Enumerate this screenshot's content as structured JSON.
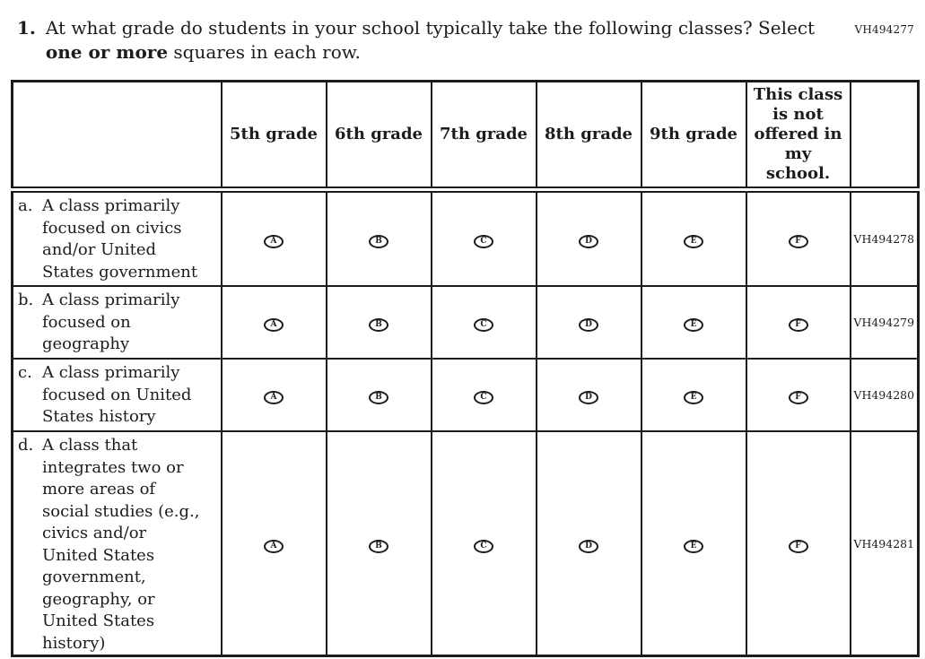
{
  "form_code": "VH494277",
  "question": {
    "number": "1.",
    "line1": "At what grade do students in your school typically take the following classes? Select",
    "line2_bold": "one or more",
    "line2_rest": " squares in each row."
  },
  "table": {
    "columns": [
      "5th grade",
      "6th grade",
      "7th grade",
      "8th grade",
      "9th grade",
      "This class is not offered in my school."
    ],
    "option_letters": [
      "A",
      "B",
      "C",
      "D",
      "E",
      "F"
    ],
    "rows": [
      {
        "letter": "a.",
        "label": "A class primarily focused on civics and/or United States government",
        "code": "VH494278"
      },
      {
        "letter": "b.",
        "label": "A class primarily focused on geography",
        "code": "VH494279"
      },
      {
        "letter": "c.",
        "label": "A class primarily focused on United States history",
        "code": "VH494280"
      },
      {
        "letter": "d.",
        "label": "A class that integrates two or more areas of social studies (e.g., civics and/or United States government, geography, or United States history)",
        "code": "VH494281"
      }
    ]
  }
}
